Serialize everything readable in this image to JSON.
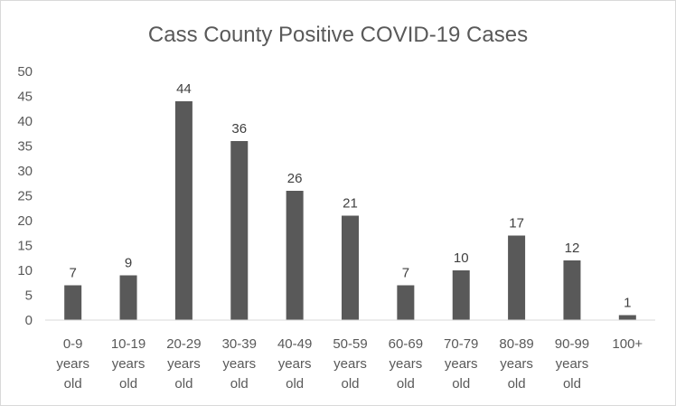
{
  "chart_data": {
    "type": "bar",
    "title": "Cass County Positive COVID-19 Cases",
    "xlabel": "",
    "ylabel": "",
    "categories": [
      [
        "0-9",
        "years",
        "old"
      ],
      [
        "10-19",
        "years",
        "old"
      ],
      [
        "20-29",
        "years",
        "old"
      ],
      [
        "30-39",
        "years",
        "old"
      ],
      [
        "40-49",
        "years",
        "old"
      ],
      [
        "50-59",
        "years",
        "old"
      ],
      [
        "60-69",
        "years",
        "old"
      ],
      [
        "70-79",
        "years",
        "old"
      ],
      [
        "80-89",
        "years",
        "old"
      ],
      [
        "90-99",
        "years",
        "old"
      ],
      [
        "100+"
      ]
    ],
    "values": [
      7,
      9,
      44,
      36,
      26,
      21,
      7,
      10,
      17,
      12,
      1
    ],
    "ylim": [
      0,
      50
    ],
    "yticks": [
      0,
      5,
      10,
      15,
      20,
      25,
      30,
      35,
      40,
      45,
      50
    ],
    "grid": false,
    "data_labels": true,
    "legend": "none",
    "colors": {
      "bar": "#595959",
      "text": "#595959",
      "axis": "#d9d9d9"
    }
  }
}
